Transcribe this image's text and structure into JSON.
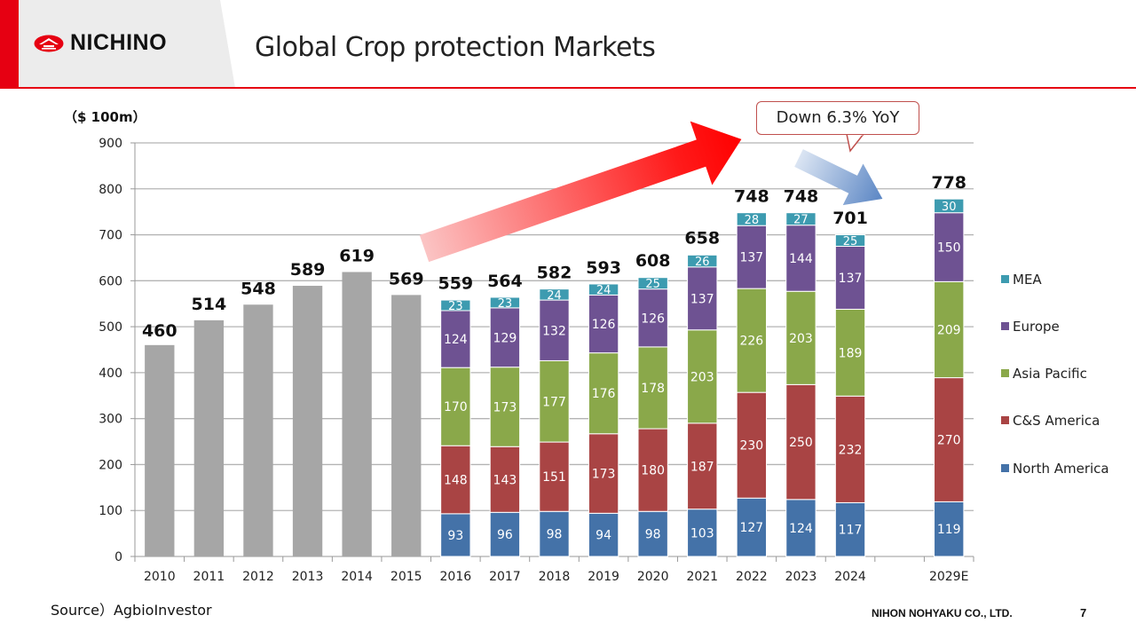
{
  "header": {
    "logo_text": "NICHINO",
    "title": "Global Crop protection  Markets"
  },
  "unit_label": "（$ 100m）",
  "callout_text": "Down 6.3% YoY",
  "footer": {
    "source": "Source）AgbioInvestor",
    "company": "NIHON NOHYAKU CO., LTD.",
    "page_number": "7"
  },
  "colors": {
    "brand_red": "#e60012",
    "total_gray": "#a6a6a6",
    "north_america": "#4472a8",
    "cs_america": "#a94444",
    "asia_pacific": "#8aa84a",
    "europe": "#6e5292",
    "mea": "#3d9bb0"
  },
  "chart_data": {
    "type": "bar",
    "stacked": true,
    "title": "Global Crop protection  Markets",
    "ylabel": "（$ 100m）",
    "xlabel": "",
    "ylim": [
      0,
      900
    ],
    "yticks": [
      0,
      100,
      200,
      300,
      400,
      500,
      600,
      700,
      800,
      900
    ],
    "grid": true,
    "legend_position": "right",
    "categories": [
      "2010",
      "2011",
      "2012",
      "2013",
      "2014",
      "2015",
      "2016",
      "2017",
      "2018",
      "2019",
      "2020",
      "2021",
      "2022",
      "2023",
      "2024",
      "",
      "2029E"
    ],
    "totals": [
      460,
      514,
      548,
      589,
      619,
      569,
      559,
      564,
      582,
      593,
      608,
      658,
      748,
      748,
      701,
      null,
      778
    ],
    "total_only_series": {
      "name": "Total",
      "values": [
        460,
        514,
        548,
        589,
        619,
        569,
        null,
        null,
        null,
        null,
        null,
        null,
        null,
        null,
        null,
        null,
        null
      ]
    },
    "series": [
      {
        "name": "North America",
        "color_key": "north_america",
        "values": [
          null,
          null,
          null,
          null,
          null,
          null,
          93,
          96,
          98,
          94,
          98,
          103,
          127,
          124,
          117,
          null,
          119
        ]
      },
      {
        "name": "C&S America",
        "color_key": "cs_america",
        "values": [
          null,
          null,
          null,
          null,
          null,
          null,
          148,
          143,
          151,
          173,
          180,
          187,
          230,
          250,
          232,
          null,
          270
        ]
      },
      {
        "name": "Asia Pacific",
        "color_key": "asia_pacific",
        "values": [
          null,
          null,
          null,
          null,
          null,
          null,
          170,
          173,
          177,
          176,
          178,
          203,
          226,
          203,
          189,
          null,
          209
        ]
      },
      {
        "name": "Europe",
        "color_key": "europe",
        "values": [
          null,
          null,
          null,
          null,
          null,
          null,
          124,
          129,
          132,
          126,
          126,
          137,
          137,
          144,
          137,
          null,
          150
        ]
      },
      {
        "name": "MEA",
        "color_key": "mea",
        "values": [
          null,
          null,
          null,
          null,
          null,
          null,
          23,
          23,
          24,
          24,
          25,
          26,
          28,
          27,
          25,
          null,
          30
        ]
      }
    ],
    "legend": [
      "MEA",
      "Europe",
      "Asia Pacific",
      "C&S America",
      "North America"
    ],
    "annotations": [
      {
        "type": "arrow",
        "direction": "up",
        "from": "2016",
        "to": "2022",
        "color": "red"
      },
      {
        "type": "arrow",
        "direction": "down",
        "from": "2023",
        "to": "2024",
        "color": "blue"
      },
      {
        "type": "callout",
        "text": "Down 6.3% YoY"
      }
    ]
  }
}
